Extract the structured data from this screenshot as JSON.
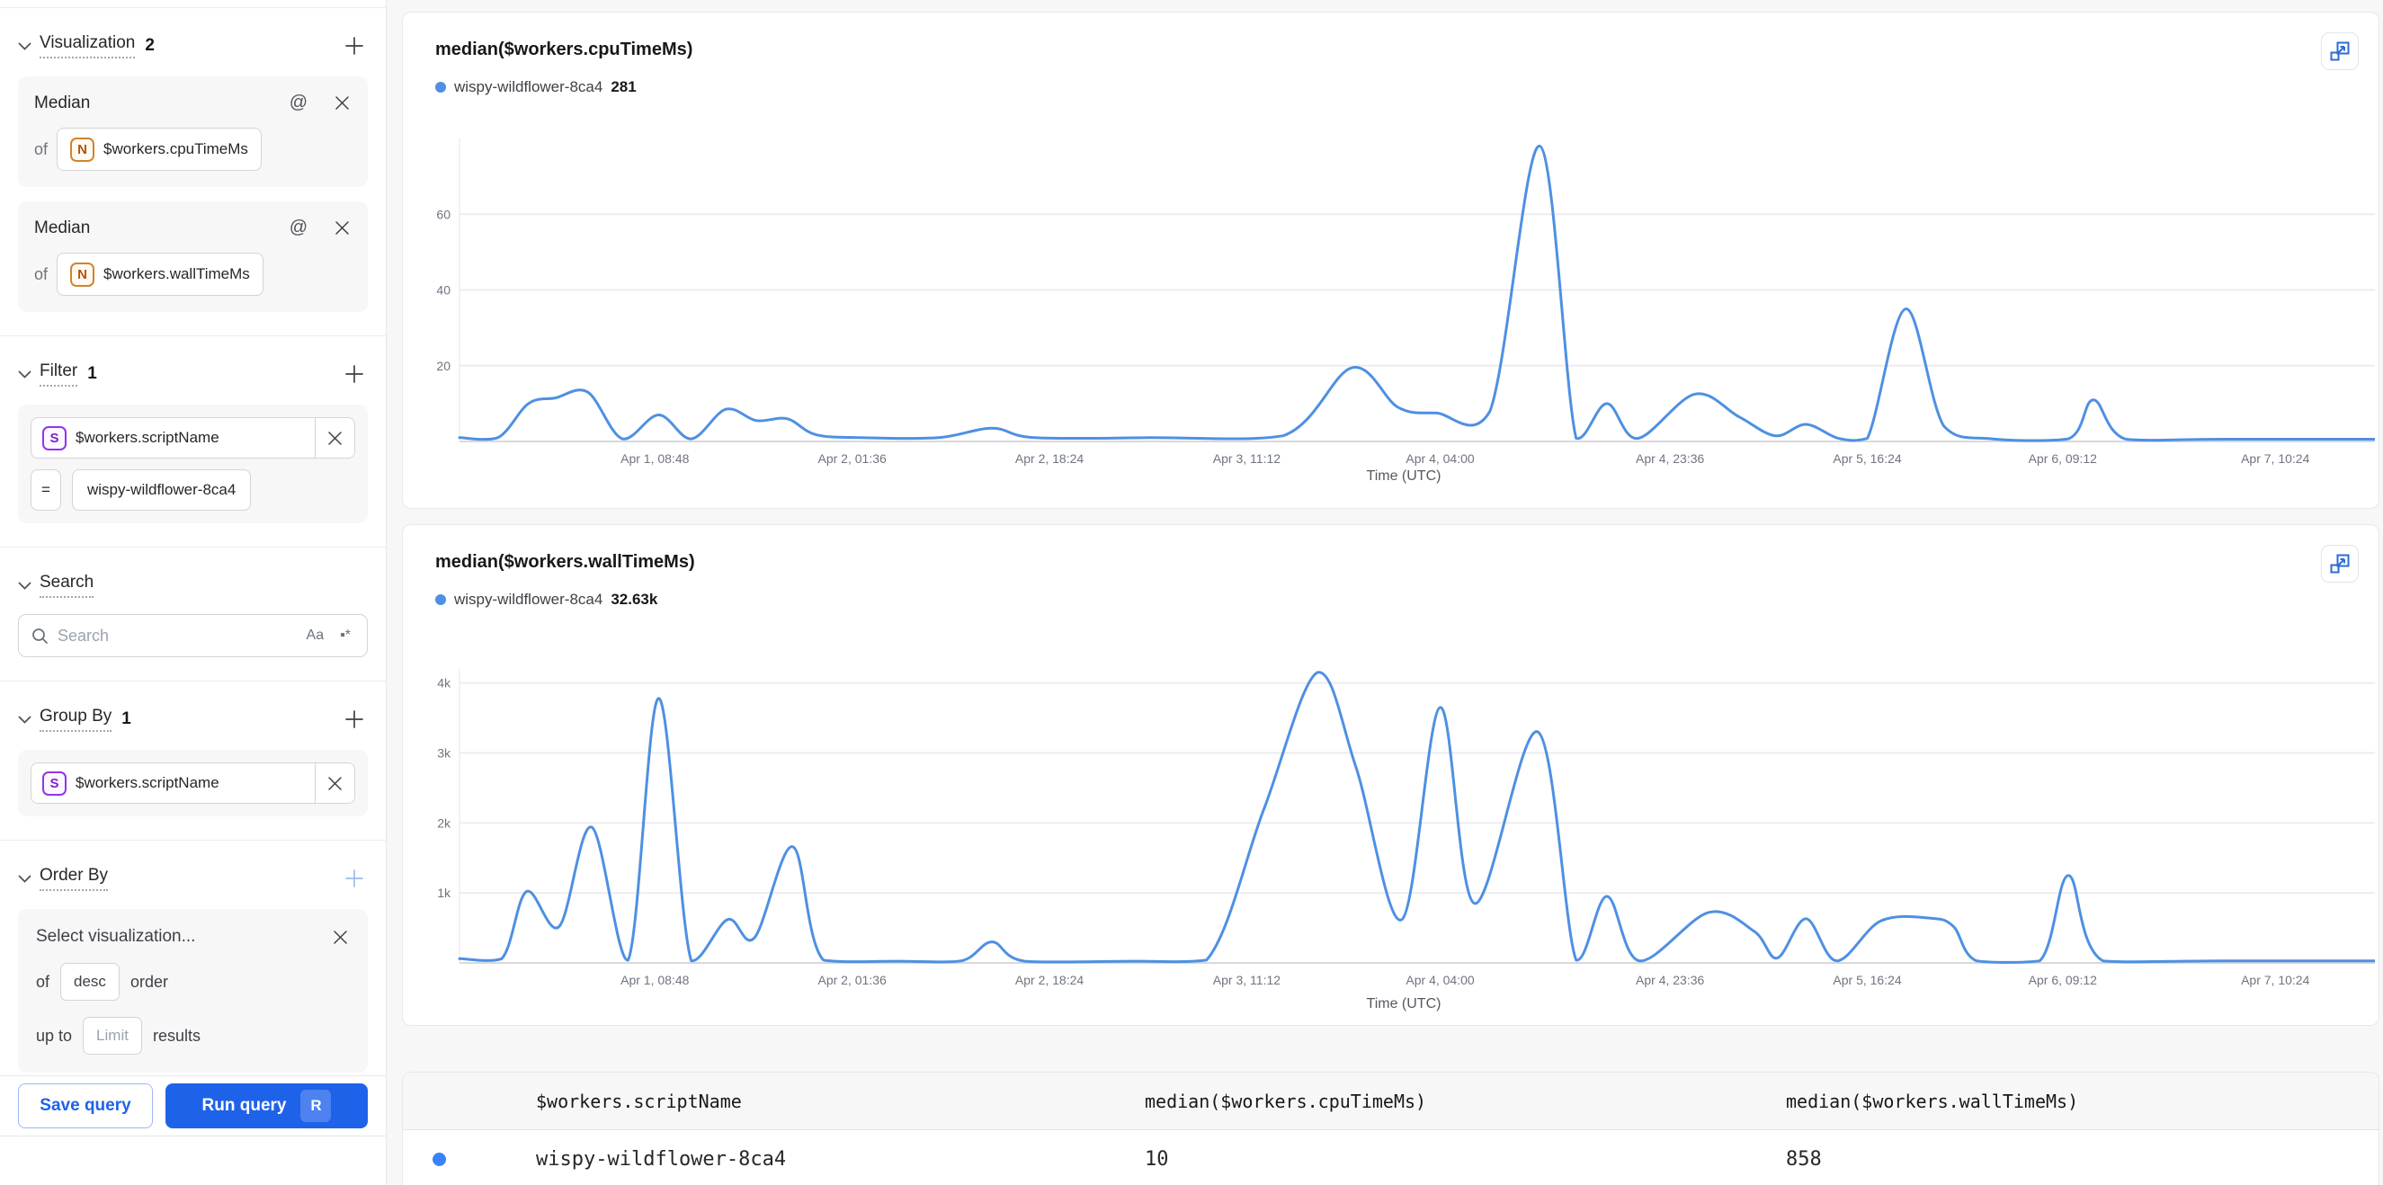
{
  "colors": {
    "line": "#4e90e2",
    "dot": "#3b82f6",
    "primary": "#1f62ea",
    "badge_number": "#b45309",
    "badge_string": "#7e22ce"
  },
  "sidebar": {
    "visualization": {
      "title": "Visualization",
      "count": "2",
      "cards": [
        {
          "metric": "Median",
          "at_icon": "@",
          "of": "of",
          "badge": "N",
          "field": "$workers.cpuTimeMs"
        },
        {
          "metric": "Median",
          "at_icon": "@",
          "of": "of",
          "badge": "N",
          "field": "$workers.wallTimeMs"
        }
      ]
    },
    "filter": {
      "title": "Filter",
      "count": "1",
      "badge": "S",
      "field": "$workers.scriptName",
      "operator": "=",
      "value": "wispy-wildflower-8ca4"
    },
    "search": {
      "title": "Search",
      "placeholder": "Search",
      "case_toggle": "Aa",
      "regex_toggle": "▪*"
    },
    "group_by": {
      "title": "Group By",
      "count": "1",
      "badge": "S",
      "field": "$workers.scriptName"
    },
    "order_by": {
      "title": "Order By",
      "select_placeholder": "Select visualization...",
      "of": "of",
      "direction": "desc",
      "order": "order",
      "up_to": "up to",
      "limit_placeholder": "Limit",
      "results": "results"
    },
    "footer": {
      "save": "Save query",
      "run": "Run query",
      "shortcut": "R"
    }
  },
  "chart_data": [
    {
      "type": "line",
      "title": "median($workers.cpuTimeMs)",
      "legend": {
        "name": "wispy-wildflower-8ca4",
        "value": "281"
      },
      "color": "#4e90e2",
      "xlabel": "Time (UTC)",
      "ylim": [
        0,
        80
      ],
      "ymax": 80,
      "grid": true,
      "yticks": [
        {
          "v": 20,
          "label": "20"
        },
        {
          "v": 40,
          "label": "40"
        },
        {
          "v": 60,
          "label": "60"
        }
      ],
      "xticks": [
        {
          "f": 0.102,
          "label": "Apr 1, 08:48"
        },
        {
          "f": 0.205,
          "label": "Apr 2, 01:36"
        },
        {
          "f": 0.308,
          "label": "Apr 2, 18:24"
        },
        {
          "f": 0.411,
          "label": "Apr 3, 11:12"
        },
        {
          "f": 0.512,
          "label": "Apr 4, 04:00"
        },
        {
          "f": 0.632,
          "label": "Apr 4, 23:36"
        },
        {
          "f": 0.735,
          "label": "Apr 5, 16:24"
        },
        {
          "f": 0.837,
          "label": "Apr 6, 09:12"
        },
        {
          "f": 0.948,
          "label": "Apr 7, 10:24"
        }
      ],
      "points": [
        [
          0,
          1
        ],
        [
          0.02,
          1
        ],
        [
          0.036,
          10
        ],
        [
          0.05,
          11.5
        ],
        [
          0.067,
          13
        ],
        [
          0.085,
          0.7
        ],
        [
          0.104,
          7
        ],
        [
          0.121,
          0.7
        ],
        [
          0.139,
          8.5
        ],
        [
          0.155,
          5.5
        ],
        [
          0.171,
          6
        ],
        [
          0.186,
          1.8
        ],
        [
          0.21,
          1
        ],
        [
          0.25,
          1
        ],
        [
          0.278,
          3.5
        ],
        [
          0.3,
          1
        ],
        [
          0.36,
          1
        ],
        [
          0.43,
          1.5
        ],
        [
          0.466,
          19.5
        ],
        [
          0.49,
          9
        ],
        [
          0.51,
          7.5
        ],
        [
          0.538,
          8
        ],
        [
          0.564,
          78
        ],
        [
          0.583,
          0.8
        ],
        [
          0.599,
          10
        ],
        [
          0.615,
          0.8
        ],
        [
          0.645,
          12.5
        ],
        [
          0.668,
          6.5
        ],
        [
          0.687,
          1.5
        ],
        [
          0.703,
          4.5
        ],
        [
          0.72,
          0.8
        ],
        [
          0.735,
          0.8
        ],
        [
          0.755,
          35
        ],
        [
          0.775,
          4
        ],
        [
          0.8,
          0.7
        ],
        [
          0.84,
          0.7
        ],
        [
          0.853,
          11
        ],
        [
          0.87,
          0.6
        ],
        [
          0.92,
          0.6
        ],
        [
          1,
          0.6
        ]
      ]
    },
    {
      "type": "line",
      "title": "median($workers.wallTimeMs)",
      "legend": {
        "name": "wispy-wildflower-8ca4",
        "value": "32.63k"
      },
      "color": "#4e90e2",
      "xlabel": "Time (UTC)",
      "ylim": [
        0,
        4200
      ],
      "ymax": 4200,
      "grid": true,
      "yticks": [
        {
          "v": 1000,
          "label": "1k"
        },
        {
          "v": 2000,
          "label": "2k"
        },
        {
          "v": 3000,
          "label": "3k"
        },
        {
          "v": 4000,
          "label": "4k"
        }
      ],
      "xticks": [
        {
          "f": 0.102,
          "label": "Apr 1, 08:48"
        },
        {
          "f": 0.205,
          "label": "Apr 2, 01:36"
        },
        {
          "f": 0.308,
          "label": "Apr 2, 18:24"
        },
        {
          "f": 0.411,
          "label": "Apr 3, 11:12"
        },
        {
          "f": 0.512,
          "label": "Apr 4, 04:00"
        },
        {
          "f": 0.632,
          "label": "Apr 4, 23:36"
        },
        {
          "f": 0.735,
          "label": "Apr 5, 16:24"
        },
        {
          "f": 0.837,
          "label": "Apr 6, 09:12"
        },
        {
          "f": 0.948,
          "label": "Apr 7, 10:24"
        }
      ],
      "points": [
        [
          0,
          60
        ],
        [
          0.022,
          60
        ],
        [
          0.035,
          1020
        ],
        [
          0.052,
          520
        ],
        [
          0.069,
          1940
        ],
        [
          0.088,
          40
        ],
        [
          0.104,
          3780
        ],
        [
          0.121,
          30
        ],
        [
          0.14,
          620
        ],
        [
          0.154,
          360
        ],
        [
          0.174,
          1660
        ],
        [
          0.19,
          40
        ],
        [
          0.23,
          25
        ],
        [
          0.262,
          30
        ],
        [
          0.278,
          300
        ],
        [
          0.295,
          25
        ],
        [
          0.35,
          25
        ],
        [
          0.39,
          40
        ],
        [
          0.42,
          2200
        ],
        [
          0.448,
          4150
        ],
        [
          0.468,
          2800
        ],
        [
          0.492,
          620
        ],
        [
          0.512,
          3650
        ],
        [
          0.53,
          850
        ],
        [
          0.563,
          3300
        ],
        [
          0.583,
          40
        ],
        [
          0.599,
          950
        ],
        [
          0.616,
          30
        ],
        [
          0.652,
          720
        ],
        [
          0.676,
          450
        ],
        [
          0.688,
          70
        ],
        [
          0.703,
          630
        ],
        [
          0.719,
          30
        ],
        [
          0.742,
          600
        ],
        [
          0.768,
          640
        ],
        [
          0.78,
          520
        ],
        [
          0.792,
          30
        ],
        [
          0.825,
          30
        ],
        [
          0.84,
          1250
        ],
        [
          0.858,
          30
        ],
        [
          0.92,
          30
        ],
        [
          1,
          30
        ]
      ]
    }
  ],
  "table": {
    "columns": [
      "$workers.scriptName",
      "median($workers.cpuTimeMs)",
      "median($workers.wallTimeMs)"
    ],
    "rows": [
      {
        "dot": "#3b82f6",
        "script": "wispy-wildflower-8ca4",
        "cpu": "10",
        "wall": "858"
      }
    ]
  }
}
